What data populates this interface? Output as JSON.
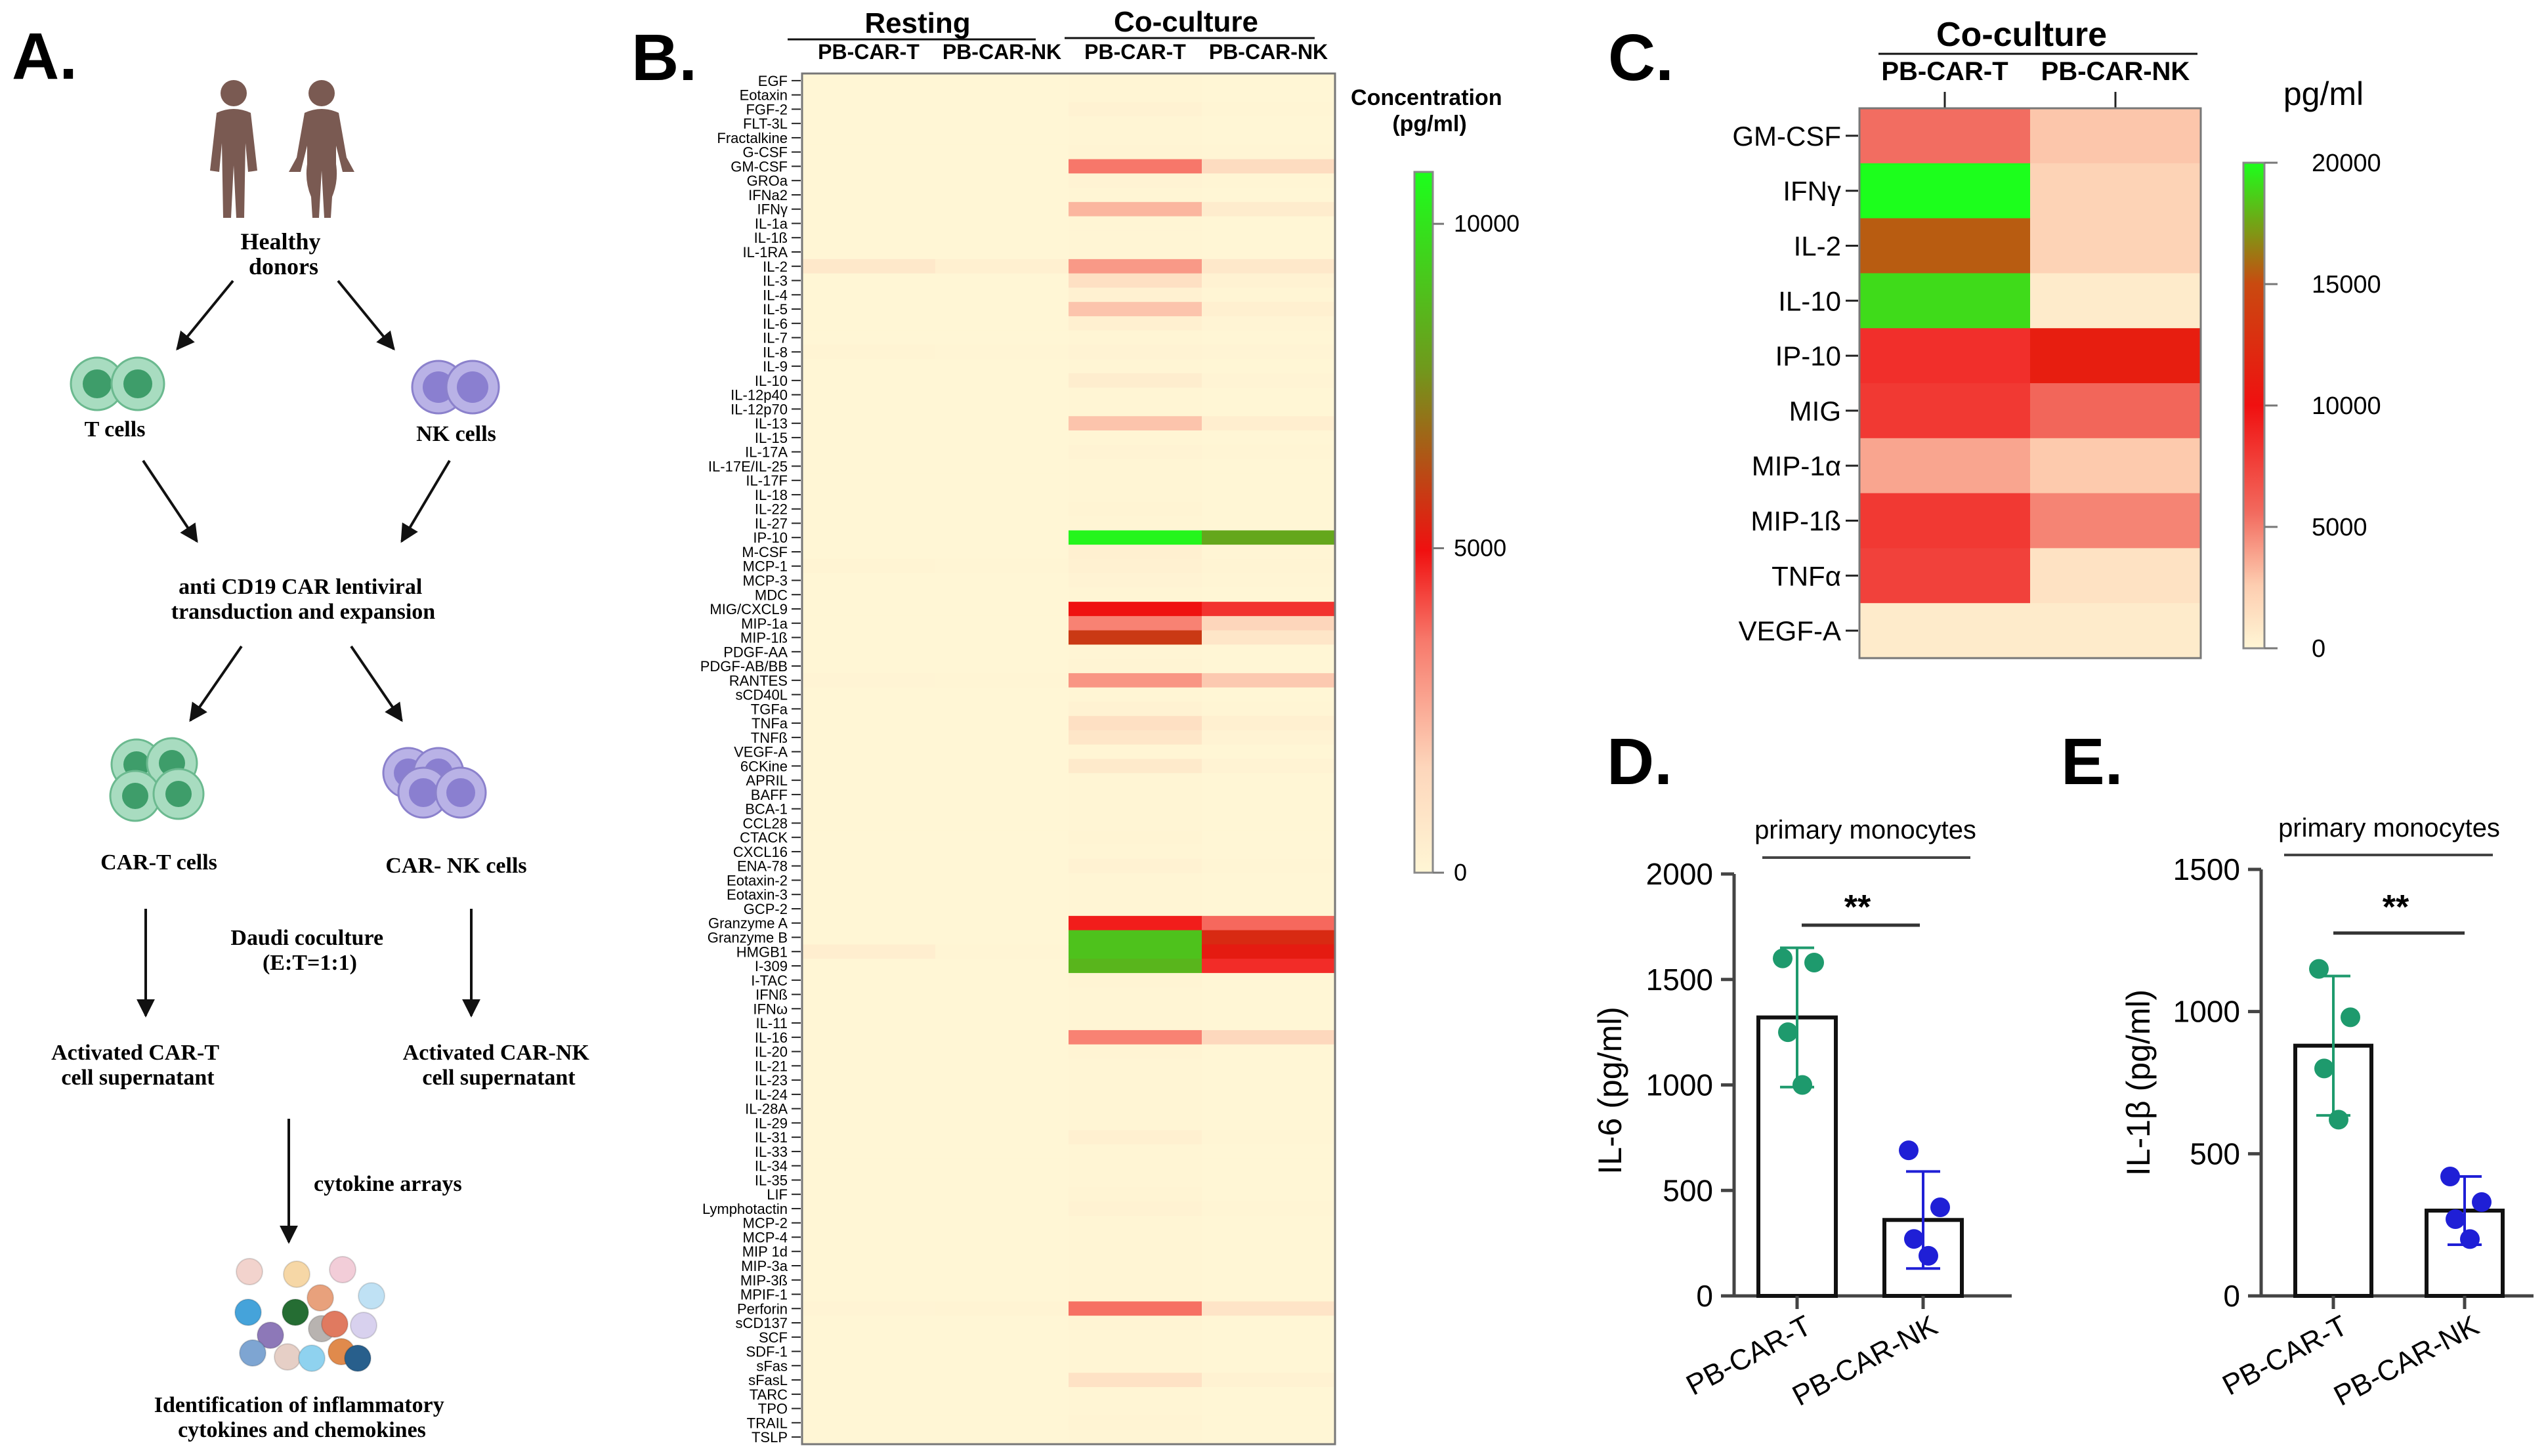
{
  "panels": {
    "a": {
      "letter": "A.",
      "healthy_donors": [
        "Healthy",
        "donors"
      ],
      "t_cells": "T cells",
      "nk_cells": "NK cells",
      "transduction": [
        "anti CD19 CAR lentiviral",
        "transduction and expansion"
      ],
      "car_t_cells": "CAR-T cells",
      "car_nk_cells": "CAR- NK cells",
      "coculture": [
        "Daudi coculture",
        "(E:T=1:1)"
      ],
      "car_t_sup": [
        "Activated CAR-T",
        "cell supernatant"
      ],
      "car_nk_sup": [
        "Activated CAR-NK",
        "cell supernatant"
      ],
      "cytokine_arrays": "cytokine arrays",
      "identification": [
        "Identification of inflammatory",
        "cytokines and chemokines"
      ],
      "bead_colors": [
        "#f2d3cd",
        "#f6d7a6",
        "#f2cdd8",
        "#bfe1f4",
        "#45a3da",
        "#256d33",
        "#e8a17c",
        "#d8d1ee",
        "#8d78b8",
        "#b8b3b0",
        "#e08a4c",
        "#7ea5d2",
        "#e6cfc6",
        "#8fd2ef",
        "#285f8c",
        "#e07a60"
      ]
    },
    "b": {
      "letter": "B.",
      "group_resting": "Resting",
      "group_coculture": "Co-culture",
      "col_headers": [
        "PB-CAR-T",
        "PB-CAR-NK",
        "PB-CAR-T",
        "PB-CAR-NK"
      ],
      "scale_title": [
        "Concentration",
        "(pg/ml)"
      ],
      "scale_ticks": [
        0,
        5000,
        10000
      ],
      "scale_max": 10800,
      "rows": [
        {
          "label": "EGF",
          "v": [
            10,
            10,
            60,
            20
          ]
        },
        {
          "label": "Eotaxin",
          "v": [
            10,
            10,
            60,
            20
          ]
        },
        {
          "label": "FGF-2",
          "v": [
            10,
            10,
            200,
            40
          ]
        },
        {
          "label": "FLT-3L",
          "v": [
            10,
            10,
            60,
            20
          ]
        },
        {
          "label": "Fractalkine",
          "v": [
            10,
            10,
            60,
            20
          ]
        },
        {
          "label": "G-CSF",
          "v": [
            10,
            10,
            100,
            40
          ]
        },
        {
          "label": "GM-CSF",
          "v": [
            10,
            10,
            3600,
            1300
          ]
        },
        {
          "label": "GROa",
          "v": [
            10,
            10,
            150,
            40
          ]
        },
        {
          "label": "IFNa2",
          "v": [
            10,
            10,
            60,
            20
          ]
        },
        {
          "label": "IFNγ",
          "v": [
            10,
            10,
            2300,
            500
          ]
        },
        {
          "label": "IL-1a",
          "v": [
            10,
            10,
            60,
            20
          ]
        },
        {
          "label": "IL-1ß",
          "v": [
            10,
            10,
            60,
            20
          ]
        },
        {
          "label": "IL-1RA",
          "v": [
            10,
            10,
            60,
            20
          ]
        },
        {
          "label": "IL-2",
          "v": [
            700,
            300,
            2900,
            700
          ]
        },
        {
          "label": "IL-3",
          "v": [
            10,
            10,
            1100,
            200
          ]
        },
        {
          "label": "IL-4",
          "v": [
            10,
            10,
            250,
            60
          ]
        },
        {
          "label": "IL-5",
          "v": [
            10,
            10,
            2000,
            300
          ]
        },
        {
          "label": "IL-6",
          "v": [
            10,
            10,
            300,
            80
          ]
        },
        {
          "label": "IL-7",
          "v": [
            10,
            10,
            60,
            20
          ]
        },
        {
          "label": "IL-8",
          "v": [
            100,
            50,
            150,
            80
          ]
        },
        {
          "label": "IL-9",
          "v": [
            10,
            10,
            60,
            20
          ]
        },
        {
          "label": "IL-10",
          "v": [
            10,
            10,
            450,
            80
          ]
        },
        {
          "label": "IL-12p40",
          "v": [
            10,
            10,
            60,
            20
          ]
        },
        {
          "label": "IL-12p70",
          "v": [
            10,
            10,
            60,
            20
          ]
        },
        {
          "label": "IL-13",
          "v": [
            10,
            10,
            2000,
            400
          ]
        },
        {
          "label": "IL-15",
          "v": [
            10,
            10,
            60,
            20
          ]
        },
        {
          "label": "IL-17A",
          "v": [
            10,
            10,
            150,
            40
          ]
        },
        {
          "label": "IL-17E/IL-25",
          "v": [
            10,
            10,
            60,
            20
          ]
        },
        {
          "label": "IL-17F",
          "v": [
            10,
            10,
            60,
            20
          ]
        },
        {
          "label": "IL-18",
          "v": [
            10,
            10,
            60,
            20
          ]
        },
        {
          "label": "IL-22",
          "v": [
            10,
            10,
            100,
            20
          ]
        },
        {
          "label": "IL-27",
          "v": [
            10,
            10,
            60,
            20
          ]
        },
        {
          "label": "IP-10",
          "v": [
            10,
            10,
            10500,
            8200
          ]
        },
        {
          "label": "M-CSF",
          "v": [
            10,
            10,
            300,
            60
          ]
        },
        {
          "label": "MCP-1",
          "v": [
            120,
            60,
            250,
            120
          ]
        },
        {
          "label": "MCP-3",
          "v": [
            10,
            10,
            150,
            40
          ]
        },
        {
          "label": "MDC",
          "v": [
            10,
            10,
            60,
            20
          ]
        },
        {
          "label": "MIG/CXCL9",
          "v": [
            10,
            10,
            5000,
            4500
          ]
        },
        {
          "label": "MIP-1a",
          "v": [
            10,
            10,
            3400,
            1600
          ]
        },
        {
          "label": "MIP-1ß",
          "v": [
            10,
            10,
            5800,
            800
          ]
        },
        {
          "label": "PDGF-AA",
          "v": [
            10,
            10,
            60,
            20
          ]
        },
        {
          "label": "PDGF-AB/BB",
          "v": [
            10,
            10,
            100,
            20
          ]
        },
        {
          "label": "RANTES",
          "v": [
            80,
            40,
            3000,
            1900
          ]
        },
        {
          "label": "sCD40L",
          "v": [
            10,
            10,
            60,
            20
          ]
        },
        {
          "label": "TGFa",
          "v": [
            10,
            10,
            200,
            40
          ]
        },
        {
          "label": "TNFa",
          "v": [
            10,
            10,
            1100,
            300
          ]
        },
        {
          "label": "TNFß",
          "v": [
            10,
            10,
            800,
            150
          ]
        },
        {
          "label": "VEGF-A",
          "v": [
            10,
            10,
            60,
            20
          ]
        },
        {
          "label": "6CKine",
          "v": [
            10,
            10,
            600,
            150
          ]
        },
        {
          "label": "APRIL",
          "v": [
            10,
            10,
            60,
            20
          ]
        },
        {
          "label": "BAFF",
          "v": [
            10,
            10,
            60,
            20
          ]
        },
        {
          "label": "BCA-1",
          "v": [
            10,
            10,
            60,
            20
          ]
        },
        {
          "label": "CCL28",
          "v": [
            10,
            10,
            60,
            20
          ]
        },
        {
          "label": "CTACK",
          "v": [
            10,
            10,
            100,
            20
          ]
        },
        {
          "label": "CXCL16",
          "v": [
            10,
            10,
            60,
            20
          ]
        },
        {
          "label": "ENA-78",
          "v": [
            10,
            10,
            200,
            50
          ]
        },
        {
          "label": "Eotaxin-2",
          "v": [
            10,
            10,
            60,
            20
          ]
        },
        {
          "label": "Eotaxin-3",
          "v": [
            10,
            10,
            60,
            20
          ]
        },
        {
          "label": "GCP-2",
          "v": [
            10,
            10,
            60,
            20
          ]
        },
        {
          "label": "Granzyme A",
          "v": [
            10,
            10,
            4800,
            3800
          ]
        },
        {
          "label": "Granzyme B",
          "v": [
            10,
            10,
            9000,
            5500
          ]
        },
        {
          "label": "HMGB1",
          "v": [
            400,
            60,
            9000,
            5200
          ]
        },
        {
          "label": "I-309",
          "v": [
            10,
            10,
            8600,
            4600
          ]
        },
        {
          "label": "I-TAC",
          "v": [
            10,
            10,
            100,
            20
          ]
        },
        {
          "label": "IFNß",
          "v": [
            10,
            10,
            60,
            20
          ]
        },
        {
          "label": "IFNω",
          "v": [
            10,
            10,
            60,
            20
          ]
        },
        {
          "label": "IL-11",
          "v": [
            10,
            10,
            60,
            20
          ]
        },
        {
          "label": "IL-16",
          "v": [
            10,
            10,
            3400,
            1500
          ]
        },
        {
          "label": "IL-20",
          "v": [
            10,
            10,
            100,
            20
          ]
        },
        {
          "label": "IL-21",
          "v": [
            10,
            10,
            60,
            20
          ]
        },
        {
          "label": "IL-23",
          "v": [
            10,
            10,
            60,
            20
          ]
        },
        {
          "label": "IL-24",
          "v": [
            10,
            10,
            60,
            20
          ]
        },
        {
          "label": "IL-28A",
          "v": [
            10,
            10,
            60,
            20
          ]
        },
        {
          "label": "IL-29",
          "v": [
            10,
            10,
            60,
            20
          ]
        },
        {
          "label": "IL-31",
          "v": [
            10,
            10,
            300,
            60
          ]
        },
        {
          "label": "IL-33",
          "v": [
            10,
            10,
            60,
            20
          ]
        },
        {
          "label": "IL-34",
          "v": [
            10,
            10,
            60,
            20
          ]
        },
        {
          "label": "IL-35",
          "v": [
            10,
            10,
            60,
            20
          ]
        },
        {
          "label": "LIF",
          "v": [
            10,
            10,
            100,
            20
          ]
        },
        {
          "label": "Lymphotactin",
          "v": [
            10,
            10,
            200,
            40
          ]
        },
        {
          "label": "MCP-2",
          "v": [
            10,
            10,
            60,
            20
          ]
        },
        {
          "label": "MCP-4",
          "v": [
            10,
            10,
            60,
            20
          ]
        },
        {
          "label": "MIP 1d",
          "v": [
            10,
            10,
            60,
            20
          ]
        },
        {
          "label": "MIP-3a",
          "v": [
            10,
            10,
            60,
            20
          ]
        },
        {
          "label": "MIP-3ß",
          "v": [
            10,
            10,
            60,
            20
          ]
        },
        {
          "label": "MPIF-1",
          "v": [
            10,
            10,
            60,
            20
          ]
        },
        {
          "label": "Perforin",
          "v": [
            80,
            120,
            3700,
            900
          ]
        },
        {
          "label": "sCD137",
          "v": [
            10,
            10,
            100,
            20
          ]
        },
        {
          "label": "SCF",
          "v": [
            10,
            10,
            60,
            20
          ]
        },
        {
          "label": "SDF-1",
          "v": [
            10,
            10,
            60,
            20
          ]
        },
        {
          "label": "sFas",
          "v": [
            10,
            10,
            60,
            20
          ]
        },
        {
          "label": "sFasL",
          "v": [
            10,
            10,
            1000,
            200
          ]
        },
        {
          "label": "TARC",
          "v": [
            10,
            10,
            60,
            20
          ]
        },
        {
          "label": "TPO",
          "v": [
            10,
            10,
            60,
            20
          ]
        },
        {
          "label": "TRAIL",
          "v": [
            10,
            10,
            100,
            20
          ]
        },
        {
          "label": "TSLP",
          "v": [
            10,
            10,
            60,
            20
          ]
        }
      ]
    },
    "c": {
      "letter": "C.",
      "group": "Co-culture",
      "col_headers": [
        "PB-CAR-T",
        "PB-CAR-NK"
      ],
      "unit": "pg/ml",
      "scale_ticks": [
        0,
        5000,
        10000,
        15000,
        20000
      ],
      "scale_max": 20000,
      "rows": [
        {
          "label": "GM-CSF",
          "v": [
            5500,
            2800
          ]
        },
        {
          "label": "IFNγ",
          "v": [
            21000,
            2200
          ]
        },
        {
          "label": "IL-2",
          "v": [
            15500,
            2200
          ]
        },
        {
          "label": "IL-10",
          "v": [
            19000,
            700
          ]
        },
        {
          "label": "IP-10",
          "v": [
            8500,
            11200
          ]
        },
        {
          "label": "MIG",
          "v": [
            8000,
            5800
          ]
        },
        {
          "label": "MIP-1α",
          "v": [
            3800,
            2700
          ]
        },
        {
          "label": "MIP-1ß",
          "v": [
            8000,
            4800
          ]
        },
        {
          "label": "TNFα",
          "v": [
            7600,
            1300
          ]
        },
        {
          "label": "VEGF-A",
          "v": [
            700,
            700
          ]
        }
      ]
    },
    "d": {
      "letter": "D.",
      "title": "primary monocytes",
      "ylabel": "IL-6 (pg/ml)",
      "sig": "**"
    },
    "e": {
      "letter": "E.",
      "title": "primary monocytes",
      "ylabel": "IL-1β (pg/ml)",
      "sig": "**"
    }
  },
  "chart_data": [
    {
      "type": "bar",
      "panel": "D",
      "title": "primary monocytes",
      "ylabel": "IL-6 (pg/ml)",
      "xlabel": "",
      "categories": [
        "PB-CAR-T",
        "PB-CAR-NK"
      ],
      "values": [
        1320,
        360
      ],
      "error": [
        330,
        230
      ],
      "points": [
        [
          1600,
          1580,
          1250,
          1000
        ],
        [
          690,
          420,
          270,
          190
        ]
      ],
      "point_colors": [
        "#1e9a6d",
        "#1f1fd6"
      ],
      "ylim": [
        0,
        2000
      ],
      "yticks": [
        0,
        500,
        1000,
        1500,
        2000
      ],
      "significance": "**"
    },
    {
      "type": "bar",
      "panel": "E",
      "title": "primary monocytes",
      "ylabel": "IL-1β (pg/ml)",
      "xlabel": "",
      "categories": [
        "PB-CAR-T",
        "PB-CAR-NK"
      ],
      "values": [
        880,
        300
      ],
      "error": [
        245,
        120
      ],
      "points": [
        [
          1150,
          980,
          800,
          620
        ],
        [
          420,
          330,
          270,
          200
        ]
      ],
      "point_colors": [
        "#1e9a6d",
        "#1f1fd6"
      ],
      "ylim": [
        0,
        1500
      ],
      "yticks": [
        0,
        500,
        1000,
        1500
      ],
      "significance": "**"
    }
  ]
}
